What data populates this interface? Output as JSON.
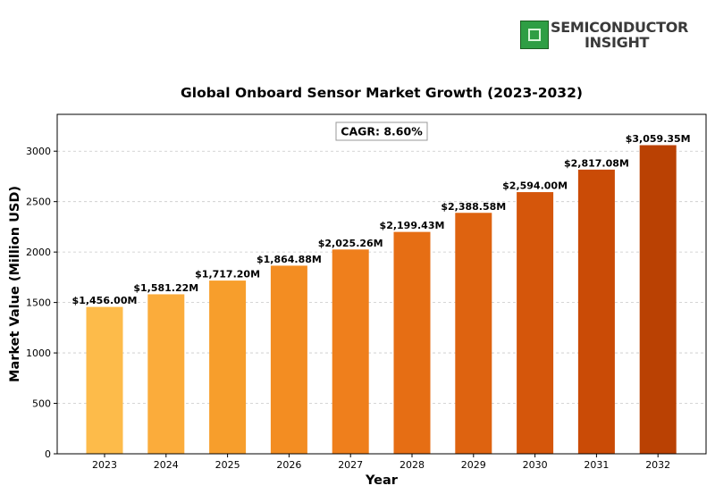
{
  "logo": {
    "line1": "SEMICONDUCTOR",
    "line2": "INSIGHT",
    "icon": "chip-icon"
  },
  "chart_data": {
    "type": "bar",
    "title": "Global Onboard Sensor Market Growth (2023-2032)",
    "xlabel": "Year",
    "ylabel": "Market Value (Million USD)",
    "categories": [
      "2023",
      "2024",
      "2025",
      "2026",
      "2027",
      "2028",
      "2029",
      "2030",
      "2031",
      "2032"
    ],
    "values": [
      1456.0,
      1581.22,
      1717.2,
      1864.88,
      2025.26,
      2199.43,
      2388.58,
      2594.0,
      2817.08,
      3059.35
    ],
    "data_labels": [
      "$1,456.00M",
      "$1,581.22M",
      "$1,717.20M",
      "$1,864.88M",
      "$2,025.26M",
      "$2,199.43M",
      "$2,388.58M",
      "$2,594.00M",
      "$2,817.08M",
      "$3,059.35M"
    ],
    "bar_colors": [
      "#FDBB4A",
      "#FBAC3B",
      "#F79E2C",
      "#F38D22",
      "#EF7F1C",
      "#E66E14",
      "#DE6310",
      "#D5560B",
      "#CA4B06",
      "#BA4103"
    ],
    "yticks": [
      0,
      500,
      1000,
      1500,
      2000,
      2500,
      3000
    ],
    "ylim": [
      0,
      3365
    ],
    "grid": true,
    "annotation": "CAGR: 8.60%"
  }
}
